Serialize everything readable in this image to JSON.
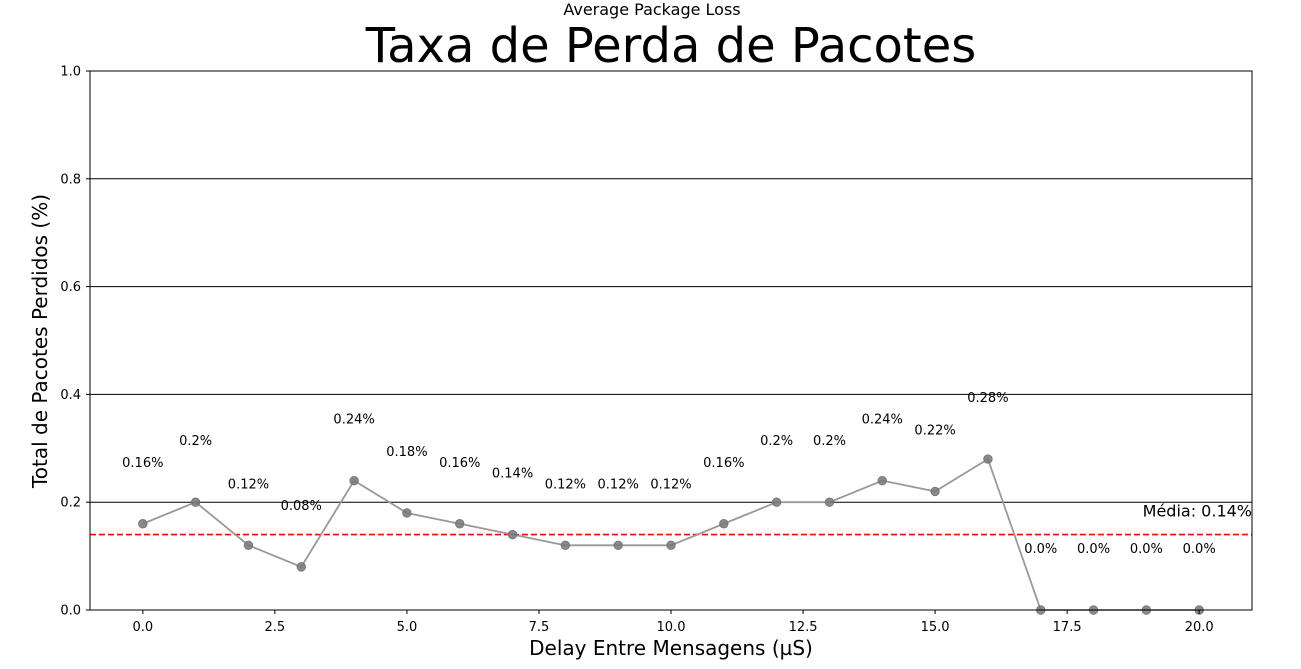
{
  "suptitle": "Average Package Loss",
  "chart_data": {
    "type": "line",
    "title": "Taxa de Perda de Pacotes",
    "xlabel": "Delay Entre Mensagens (µS)",
    "ylabel": "Total de Pacotes Perdidos (%)",
    "xlim": [
      -1,
      21
    ],
    "ylim": [
      0.0,
      1.0
    ],
    "x_ticks": [
      0.0,
      2.5,
      5.0,
      7.5,
      10.0,
      12.5,
      15.0,
      17.5,
      20.0
    ],
    "x_tick_labels": [
      "0.0",
      "2.5",
      "5.0",
      "7.5",
      "10.0",
      "12.5",
      "15.0",
      "17.5",
      "20.0"
    ],
    "y_ticks": [
      0.0,
      0.2,
      0.4,
      0.6,
      0.8,
      1.0
    ],
    "y_tick_labels": [
      "0.0",
      "0.2",
      "0.4",
      "0.6",
      "0.8",
      "1.0"
    ],
    "grid": "horizontal",
    "series": [
      {
        "x": [
          0,
          1,
          2,
          3,
          4,
          5,
          6,
          7,
          8,
          9,
          10,
          11,
          12,
          13,
          14,
          15,
          16,
          17,
          18,
          19,
          20
        ],
        "values": [
          0.16,
          0.2,
          0.12,
          0.08,
          0.24,
          0.18,
          0.16,
          0.14,
          0.12,
          0.12,
          0.12,
          0.16,
          0.2,
          0.2,
          0.24,
          0.22,
          0.28,
          0.0,
          0.0,
          0.0,
          0.0
        ],
        "data_labels": [
          "0.16%",
          "0.2%",
          "0.12%",
          "0.08%",
          "0.24%",
          "0.18%",
          "0.16%",
          "0.14%",
          "0.12%",
          "0.12%",
          "0.12%",
          "0.16%",
          "0.2%",
          "0.2%",
          "0.24%",
          "0.22%",
          "0.28%",
          "0.0%",
          "0.0%",
          "0.0%",
          "0.0%"
        ],
        "color": "#999999"
      }
    ],
    "mean_line": {
      "value": 0.14,
      "label": "Média: 0.14%",
      "color": "#ff0000"
    }
  }
}
